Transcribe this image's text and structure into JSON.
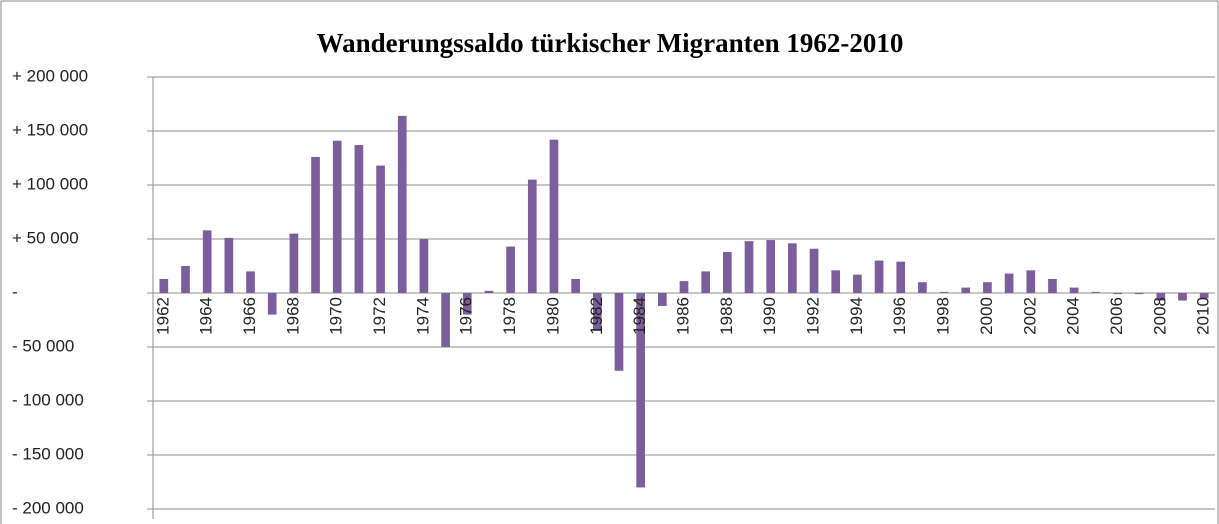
{
  "chart_data": {
    "type": "bar",
    "title": "Wanderungssaldo türkischer Migranten 1962-2010",
    "categories": [
      "1962",
      null,
      "1964",
      null,
      "1966",
      null,
      "1968",
      null,
      "1970",
      null,
      "1972",
      null,
      "1974",
      null,
      "1976",
      null,
      "1978",
      null,
      "1980",
      null,
      "1982",
      null,
      "1984",
      null,
      "1986",
      null,
      "1988",
      null,
      "1990",
      null,
      "1992",
      null,
      "1994",
      null,
      "1996",
      null,
      "1998",
      null,
      "2000",
      null,
      "2002",
      null,
      "2004",
      null,
      "2006",
      null,
      "2008",
      null,
      "2010"
    ],
    "values": [
      13000,
      25000,
      58000,
      51000,
      20000,
      -20000,
      55000,
      126000,
      141000,
      137000,
      118000,
      164000,
      50000,
      -50000,
      -20000,
      2000,
      43000,
      105000,
      142000,
      13000,
      -35000,
      -72000,
      -180000,
      -12000,
      11000,
      20000,
      38000,
      48000,
      49000,
      46000,
      41000,
      21000,
      17000,
      30000,
      29000,
      10000,
      1000,
      5000,
      10000,
      18000,
      21000,
      13000,
      5000,
      1000,
      -1000,
      -1000,
      -7000,
      -7000,
      -5000
    ],
    "color": "#7b5e9b",
    "ylim": [
      -200000,
      200000
    ],
    "yticks": [
      {
        "value": -200000,
        "label": "- 200 000"
      },
      {
        "value": -150000,
        "label": "- 150 000"
      },
      {
        "value": -100000,
        "label": "- 100 000"
      },
      {
        "value": -50000,
        "label": "- 50 000"
      },
      {
        "value": 0,
        "label": "-"
      },
      {
        "value": 50000,
        "label": "+ 50 000"
      },
      {
        "value": 100000,
        "label": "+ 100 000"
      },
      {
        "value": 150000,
        "label": "+ 150 000"
      },
      {
        "value": 200000,
        "label": "+ 200 000"
      }
    ],
    "grid": true
  }
}
